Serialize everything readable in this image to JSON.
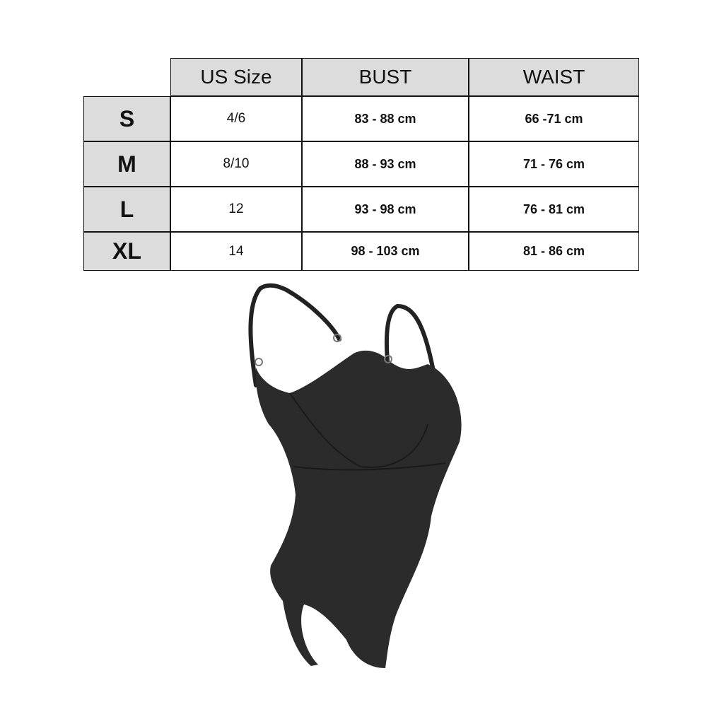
{
  "size_chart": {
    "columns": [
      "US Size",
      "BUST",
      "WAIST"
    ],
    "rows": [
      {
        "size": "S",
        "us_size": "4/6",
        "bust": "83 - 88 cm",
        "waist": "66 -71 cm"
      },
      {
        "size": "M",
        "us_size": "8/10",
        "bust": "88 - 93 cm",
        "waist": "71 - 76 cm"
      },
      {
        "size": "L",
        "us_size": "12",
        "bust": "93 - 98 cm",
        "waist": "76 - 81 cm"
      },
      {
        "size": "XL",
        "us_size": "14",
        "bust": "98 - 103 cm",
        "waist": "81 - 86 cm"
      }
    ]
  },
  "colors": {
    "header_bg": "#dcdcdc",
    "border": "#111111",
    "garment": "#2b2b2b"
  },
  "product_image": "black-bodysuit"
}
